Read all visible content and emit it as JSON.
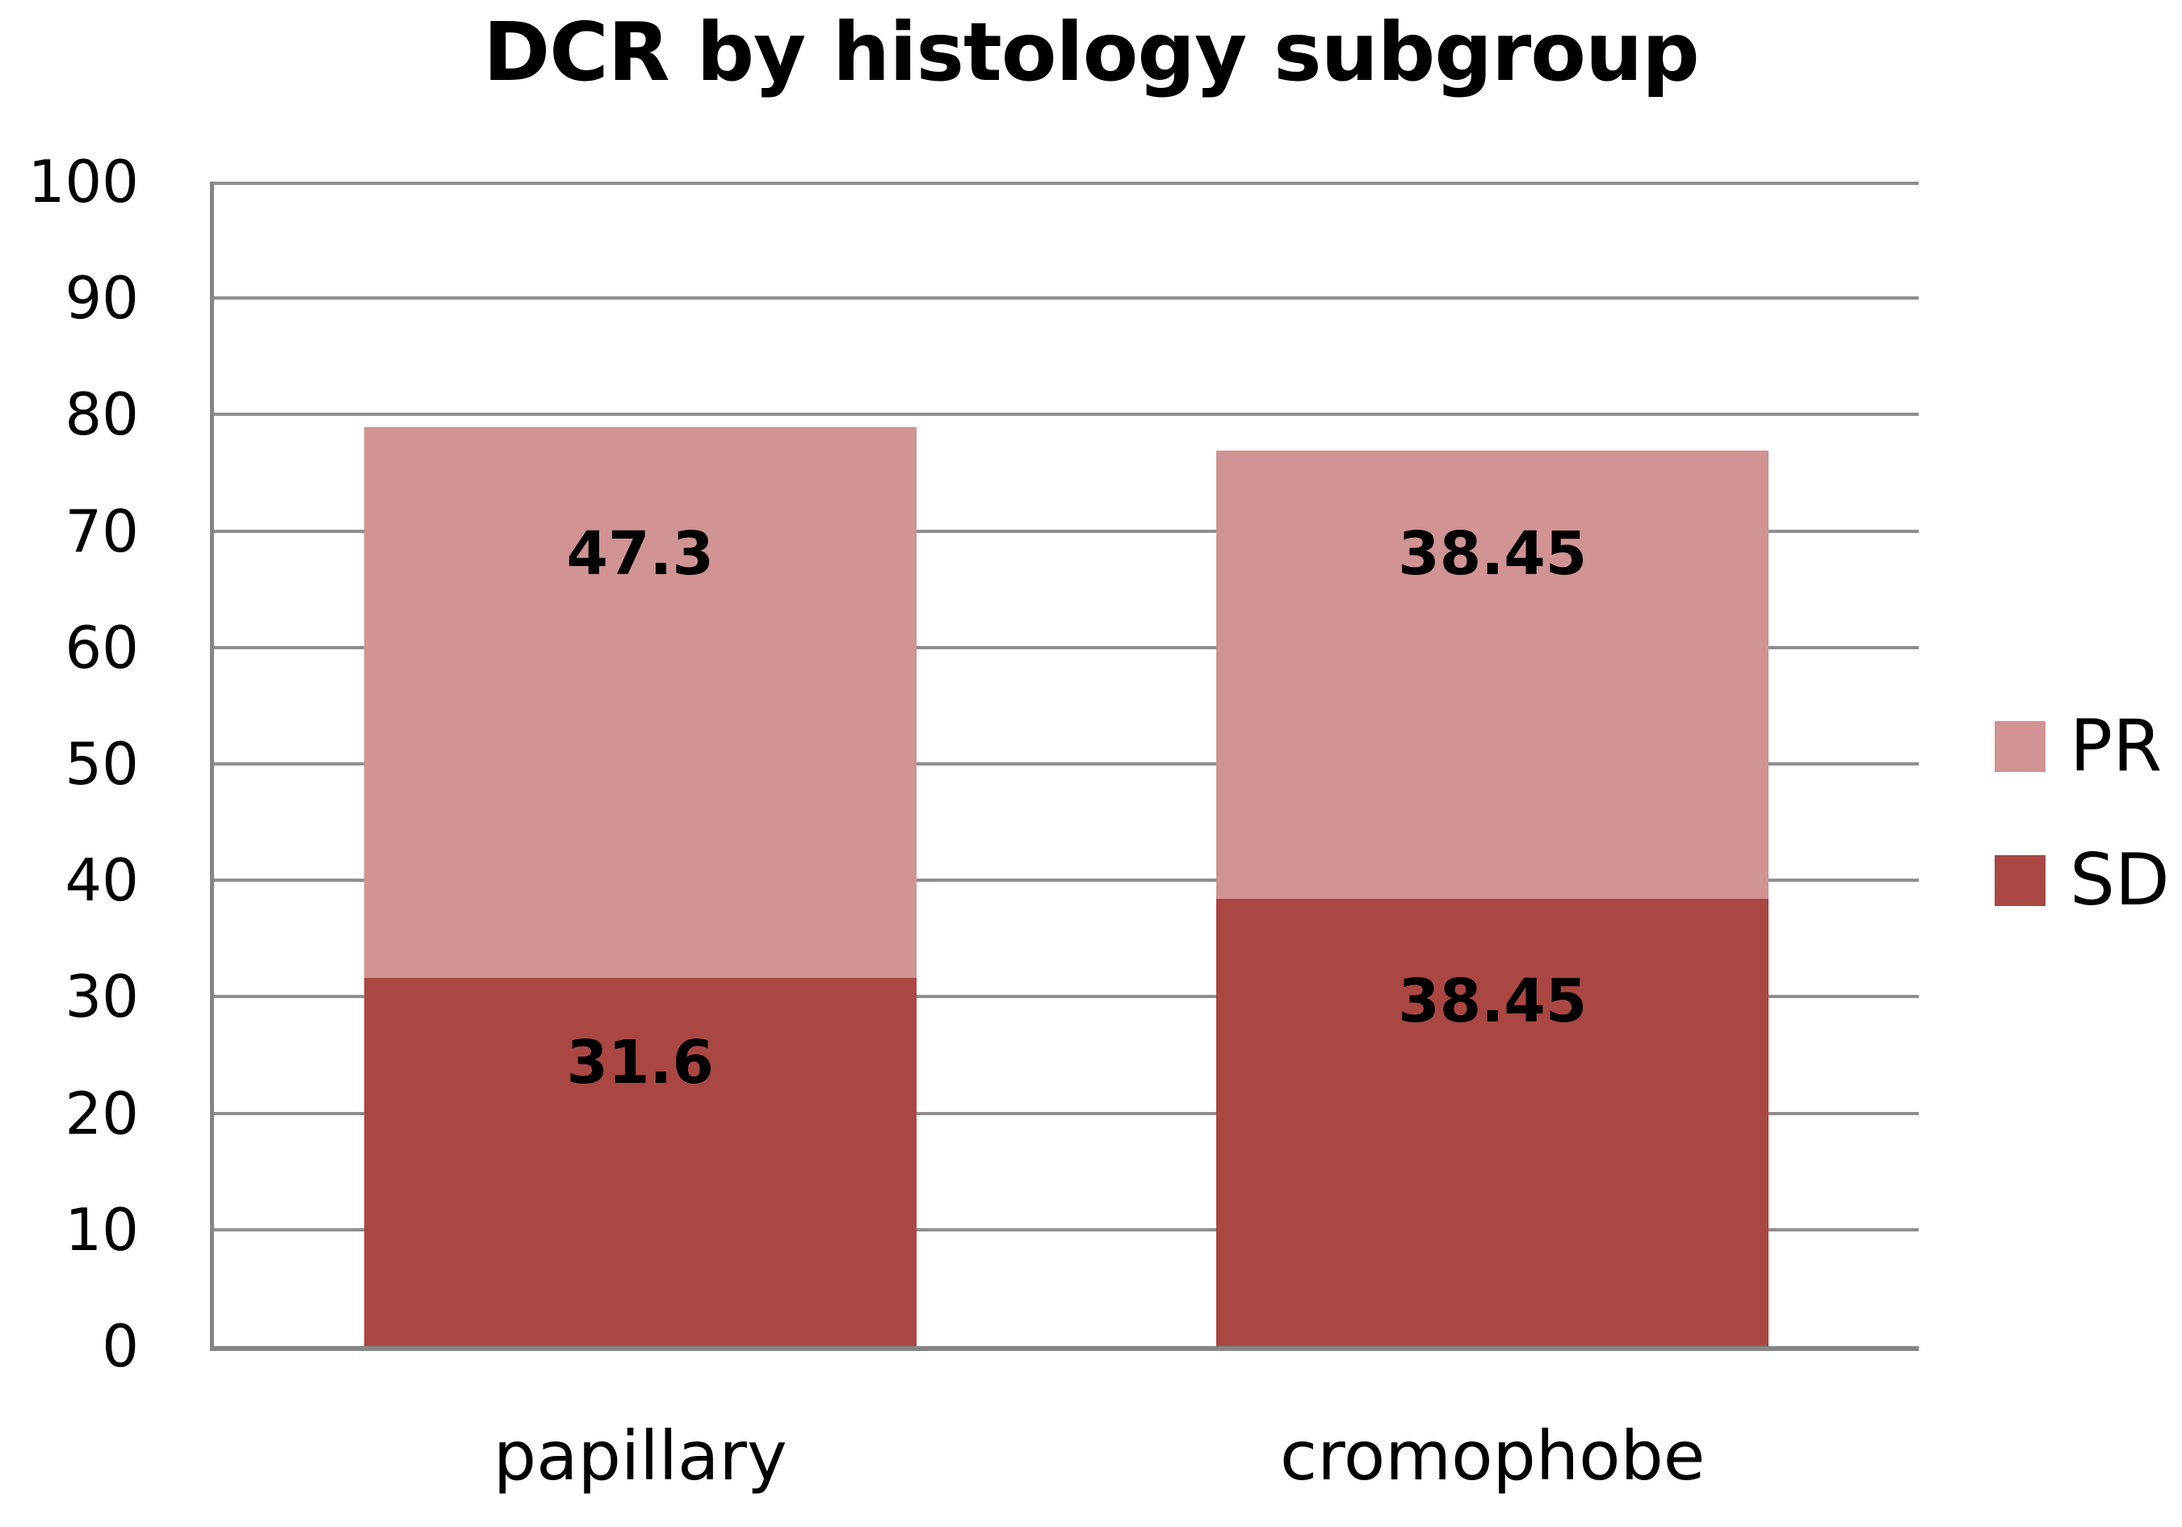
{
  "chart_data": {
    "type": "bar",
    "stacked": true,
    "title": "DCR by histology subgroup",
    "categories": [
      "papillary",
      "cromophobe"
    ],
    "series": [
      {
        "name": "SD",
        "color": "#AA4743",
        "values": [
          31.6,
          38.45
        ],
        "data_labels": [
          "31.6",
          "38.45"
        ]
      },
      {
        "name": "PR",
        "color": "#D19394",
        "values": [
          47.3,
          38.45
        ],
        "data_labels": [
          "47.3",
          "38.45"
        ]
      }
    ],
    "stack_order_bottom_to_top": [
      "SD",
      "PR"
    ],
    "ylim": [
      0,
      100
    ],
    "yticks": [
      0,
      10,
      20,
      30,
      40,
      50,
      60,
      70,
      80,
      90,
      100
    ],
    "grid": true,
    "axis_color": "#858585",
    "gridline_color": "#8f8f8f",
    "legend": {
      "position": "right",
      "entries": [
        {
          "label": "PR",
          "color": "#D19394"
        },
        {
          "label": "SD",
          "color": "#AA4743"
        }
      ]
    }
  }
}
